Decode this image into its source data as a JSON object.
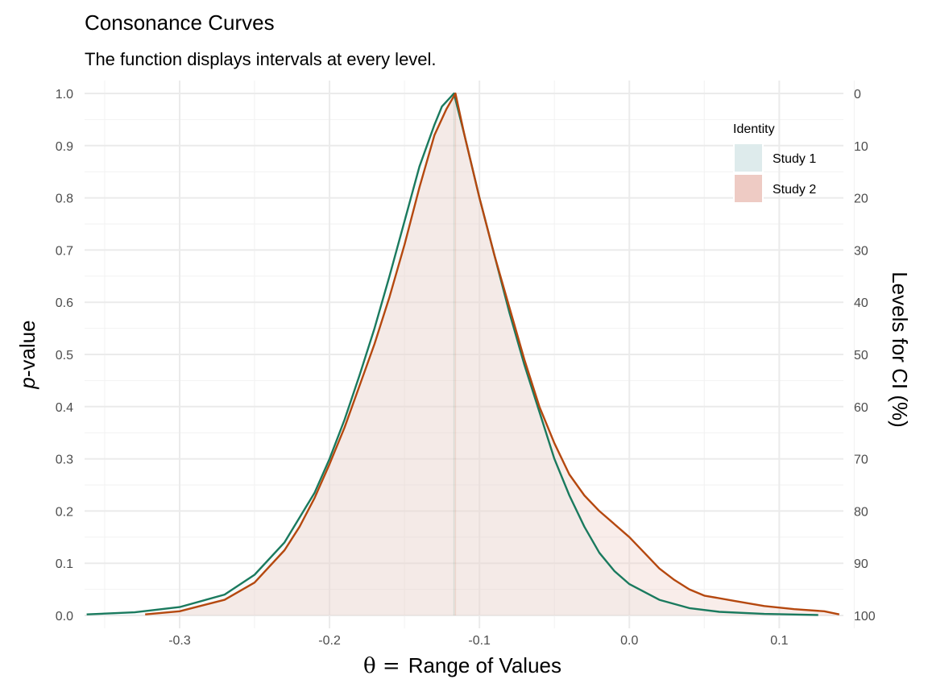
{
  "chart_data": {
    "type": "line",
    "title": "Consonance Curves",
    "subtitle": "The function displays intervals at every level.",
    "xlabel_symbol": "θ =",
    "xlabel": "Range of Values",
    "ylabel_italic": "p",
    "ylabel": "-value",
    "y2label": "Levels for CI (%)",
    "xlim": [
      -0.3634,
      0.1428
    ],
    "ylim": [
      0,
      1
    ],
    "x_ticks": [
      -0.3,
      -0.2,
      -0.1,
      0.0,
      0.1
    ],
    "x_tick_labels": [
      "-0.3",
      "-0.2",
      "-0.1",
      "0.0",
      "0.1"
    ],
    "y_ticks": [
      0.0,
      0.1,
      0.2,
      0.3,
      0.4,
      0.5,
      0.6,
      0.7,
      0.8,
      0.9,
      1.0
    ],
    "y_tick_labels": [
      "0.0",
      "0.1",
      "0.2",
      "0.3",
      "0.4",
      "0.5",
      "0.6",
      "0.7",
      "0.8",
      "0.9",
      "1.0"
    ],
    "y2_tick_labels": [
      "100",
      "90",
      "80",
      "70",
      "60",
      "50",
      "40",
      "30",
      "20",
      "10",
      "0"
    ],
    "grid": true,
    "legend": {
      "title": "Identity",
      "placement": "top-right",
      "entries": [
        {
          "label": "Study 1",
          "fill": "#deebec"
        },
        {
          "label": "Study 2",
          "fill": "#eecbc4"
        }
      ]
    },
    "series": [
      {
        "name": "Study 1",
        "line_color": "#1a7a5e",
        "fill_color": "#deebec",
        "fill_opacity": 0.25,
        "peak_x": -0.117,
        "x": [
          -0.362,
          -0.33,
          -0.3,
          -0.27,
          -0.25,
          -0.23,
          -0.21,
          -0.2,
          -0.19,
          -0.18,
          -0.17,
          -0.16,
          -0.15,
          -0.14,
          -0.13,
          -0.125,
          -0.117,
          -0.11,
          -0.1,
          -0.09,
          -0.08,
          -0.07,
          -0.06,
          -0.05,
          -0.04,
          -0.03,
          -0.02,
          -0.01,
          0.0,
          0.02,
          0.04,
          0.06,
          0.09,
          0.126
        ],
        "y": [
          0.002,
          0.006,
          0.016,
          0.04,
          0.078,
          0.14,
          0.235,
          0.3,
          0.375,
          0.46,
          0.55,
          0.65,
          0.755,
          0.86,
          0.94,
          0.975,
          1.0,
          0.92,
          0.8,
          0.69,
          0.58,
          0.48,
          0.39,
          0.3,
          0.23,
          0.17,
          0.12,
          0.085,
          0.06,
          0.03,
          0.014,
          0.007,
          0.003,
          0.001
        ]
      },
      {
        "name": "Study 2",
        "line_color": "#b5480f",
        "fill_color": "#eecbc4",
        "fill_opacity": 0.35,
        "peak_x": -0.116,
        "x": [
          -0.323,
          -0.3,
          -0.27,
          -0.25,
          -0.23,
          -0.22,
          -0.21,
          -0.2,
          -0.19,
          -0.18,
          -0.17,
          -0.16,
          -0.15,
          -0.14,
          -0.13,
          -0.122,
          -0.116,
          -0.11,
          -0.1,
          -0.09,
          -0.08,
          -0.07,
          -0.06,
          -0.05,
          -0.04,
          -0.03,
          -0.02,
          -0.01,
          0.0,
          0.01,
          0.02,
          0.03,
          0.04,
          0.05,
          0.07,
          0.09,
          0.11,
          0.13,
          0.14
        ],
        "y": [
          0.002,
          0.008,
          0.03,
          0.063,
          0.125,
          0.17,
          0.225,
          0.29,
          0.36,
          0.44,
          0.52,
          0.61,
          0.71,
          0.82,
          0.92,
          0.97,
          1.0,
          0.92,
          0.8,
          0.69,
          0.59,
          0.49,
          0.4,
          0.33,
          0.27,
          0.23,
          0.2,
          0.175,
          0.15,
          0.12,
          0.09,
          0.068,
          0.05,
          0.038,
          0.028,
          0.018,
          0.012,
          0.008,
          0.002
        ]
      }
    ]
  }
}
